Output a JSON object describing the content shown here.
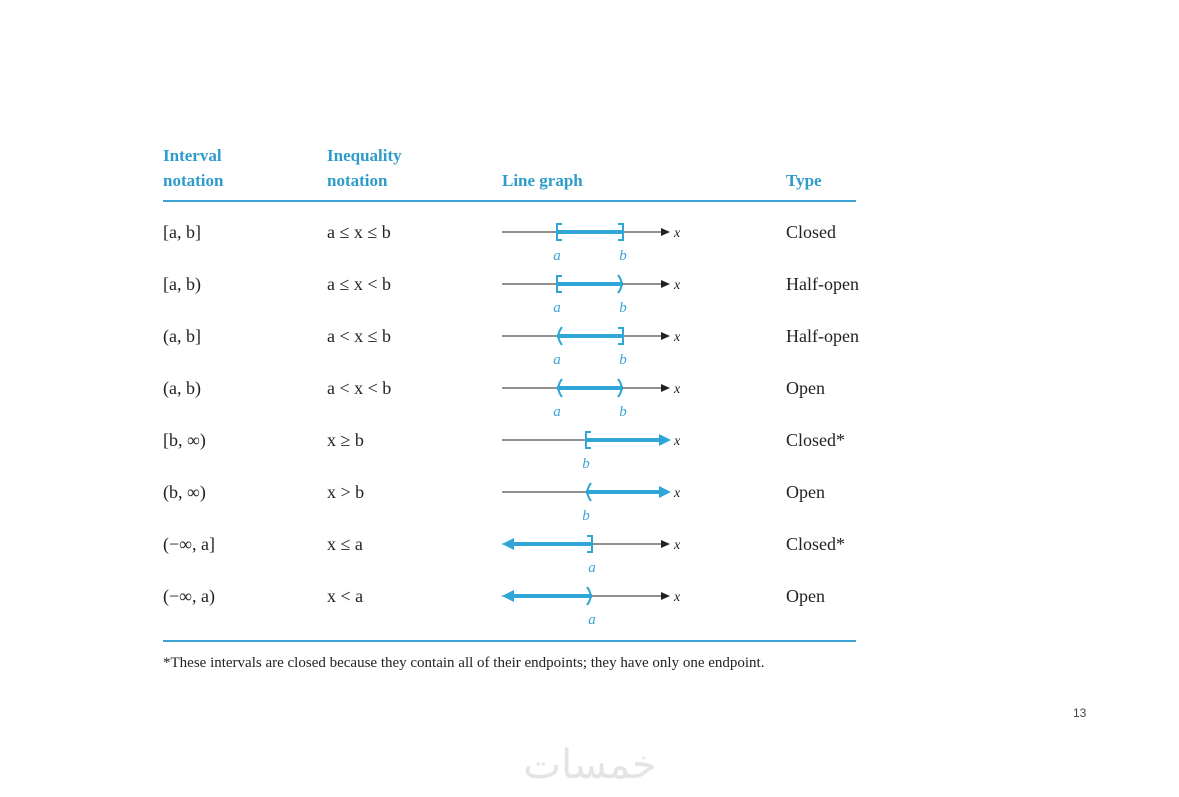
{
  "table": {
    "headers": [
      "Interval",
      "notation",
      "Inequality",
      "notation",
      "Line graph",
      "Type"
    ],
    "rows": [
      {
        "interval": "[a, b]",
        "inequality": "a ≤ x ≤ b",
        "marks": [
          "a",
          "b"
        ],
        "axis": "x",
        "type": "Closed"
      },
      {
        "interval": "[a, b)",
        "inequality": "a ≤ x < b",
        "marks": [
          "a",
          "b"
        ],
        "axis": "x",
        "type": "Half-open"
      },
      {
        "interval": "(a, b]",
        "inequality": "a < x ≤ b",
        "marks": [
          "a",
          "b"
        ],
        "axis": "x",
        "type": "Half-open"
      },
      {
        "interval": "(a, b)",
        "inequality": "a < x < b",
        "marks": [
          "a",
          "b"
        ],
        "axis": "x",
        "type": "Open"
      },
      {
        "interval": "[b, ∞)",
        "inequality": "x ≥ b",
        "marks": [
          "b"
        ],
        "axis": "x",
        "type": "Closed*"
      },
      {
        "interval": "(b, ∞)",
        "inequality": "x > b",
        "marks": [
          "b"
        ],
        "axis": "x",
        "type": "Open"
      },
      {
        "interval": "(−∞, a]",
        "inequality": "x ≤ a",
        "marks": [
          "a"
        ],
        "axis": "x",
        "type": "Closed*"
      },
      {
        "interval": "(−∞, a)",
        "inequality": "x < a",
        "marks": [
          "a"
        ],
        "axis": "x",
        "type": "Open"
      }
    ],
    "footnote": "*These intervals are closed because they contain all of their endpoints; they have only one endpoint."
  },
  "page_number": "13",
  "watermark": "خمسات"
}
